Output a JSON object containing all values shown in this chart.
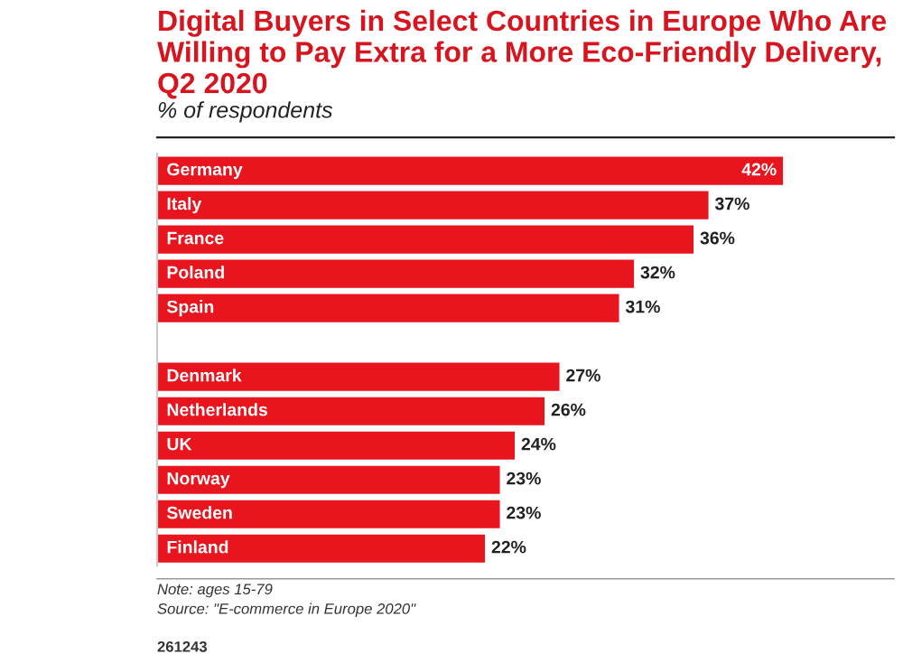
{
  "chart_data": {
    "type": "bar",
    "orientation": "horizontal",
    "title": "Digital Buyers in Select Countries in Europe Who Are Willing to Pay Extra for a More Eco-Friendly Delivery, Q2 2020",
    "subtitle": "% of respondents",
    "categories": [
      "Germany",
      "Italy",
      "France",
      "Poland",
      "Spain",
      null,
      "Denmark",
      "Netherlands",
      "UK",
      "Norway",
      "Sweden",
      "Finland"
    ],
    "values": [
      42,
      37,
      36,
      32,
      31,
      null,
      27,
      26,
      24,
      23,
      23,
      22
    ],
    "value_labels": [
      "42%",
      "37%",
      "36%",
      "32%",
      "31%",
      null,
      "27%",
      "26%",
      "24%",
      "23%",
      "23%",
      "22%"
    ],
    "color": "#e8141e",
    "grid": false,
    "tick_labels": false,
    "annotations": [
      "Note: ages 15-79",
      "Source: \"E-commerce in Europe 2020\"",
      "261243"
    ]
  }
}
